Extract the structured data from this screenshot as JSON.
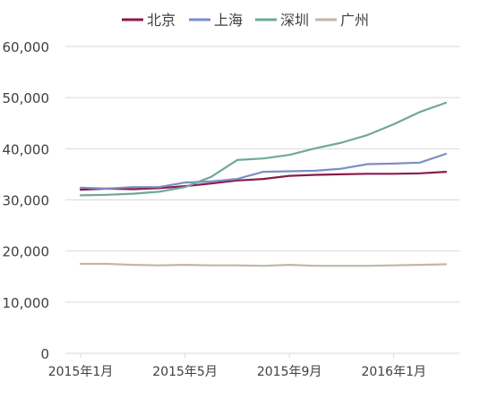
{
  "chart_data": {
    "type": "line",
    "title": "",
    "xlabel": "",
    "ylabel": "",
    "ylim": [
      0,
      60000
    ],
    "yticks": [
      0,
      10000,
      20000,
      30000,
      40000,
      50000,
      60000
    ],
    "ytick_labels": [
      "0",
      "10,000",
      "20,000",
      "30,000",
      "40,000",
      "50,000",
      "60,000"
    ],
    "grid": true,
    "legend_position": "top",
    "x": [
      "2015-01",
      "2015-02",
      "2015-03",
      "2015-04",
      "2015-05",
      "2015-06",
      "2015-07",
      "2015-08",
      "2015-09",
      "2015-10",
      "2015-11",
      "2015-12",
      "2016-01",
      "2016-02",
      "2016-03"
    ],
    "xtick_labels": [
      {
        "x": "2015-01",
        "label": "2015年1月"
      },
      {
        "x": "2015-05",
        "label": "2015年5月"
      },
      {
        "x": "2015-09",
        "label": "2015年9月"
      },
      {
        "x": "2016-01",
        "label": "2016年1月"
      }
    ],
    "series": [
      {
        "name": "北京",
        "color": "#8b1a4a",
        "values": [
          32000,
          32200,
          32100,
          32300,
          32700,
          33200,
          33800,
          34100,
          34700,
          34900,
          35000,
          35100,
          35100,
          35200,
          35500
        ]
      },
      {
        "name": "上海",
        "color": "#7b8ec8",
        "values": [
          32400,
          32200,
          32500,
          32500,
          33400,
          33600,
          34100,
          35500,
          35600,
          35700,
          36100,
          37000,
          37100,
          37300,
          39000
        ]
      },
      {
        "name": "深圳",
        "color": "#6fa89a",
        "values": [
          30900,
          31000,
          31200,
          31600,
          32500,
          34500,
          37800,
          38100,
          38800,
          40100,
          41200,
          42700,
          44800,
          47200,
          49000
        ]
      },
      {
        "name": "广州",
        "color": "#c2b6a4",
        "values": [
          17500,
          17500,
          17300,
          17200,
          17300,
          17200,
          17200,
          17100,
          17300,
          17100,
          17100,
          17100,
          17200,
          17300,
          17400
        ]
      }
    ]
  }
}
